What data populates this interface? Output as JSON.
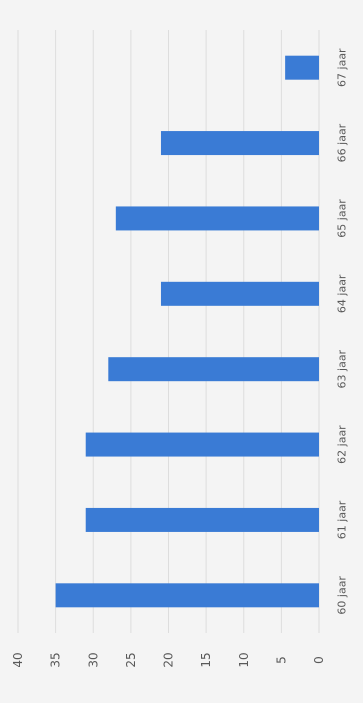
{
  "chart_data": {
    "type": "bar",
    "orientation": "horizontal",
    "categories": [
      "60 jaar",
      "61 jaar",
      "62 jaar",
      "63 jaar",
      "64 jaar",
      "65 jaar",
      "66 jaar",
      "67 jaar"
    ],
    "values": [
      35,
      31,
      31,
      28,
      21,
      27,
      21,
      4.5
    ],
    "title": "",
    "xlabel": "",
    "ylabel": "",
    "xlim": [
      0,
      40
    ],
    "ticks": [
      "0",
      "5",
      "10",
      "15",
      "20",
      "25",
      "30",
      "35",
      "40"
    ],
    "grid": true,
    "legend": "none",
    "colors": {
      "bar": "#3a7bd5",
      "grid": "#dddddd",
      "text": "#595959",
      "background": "#f4f4f4"
    }
  }
}
